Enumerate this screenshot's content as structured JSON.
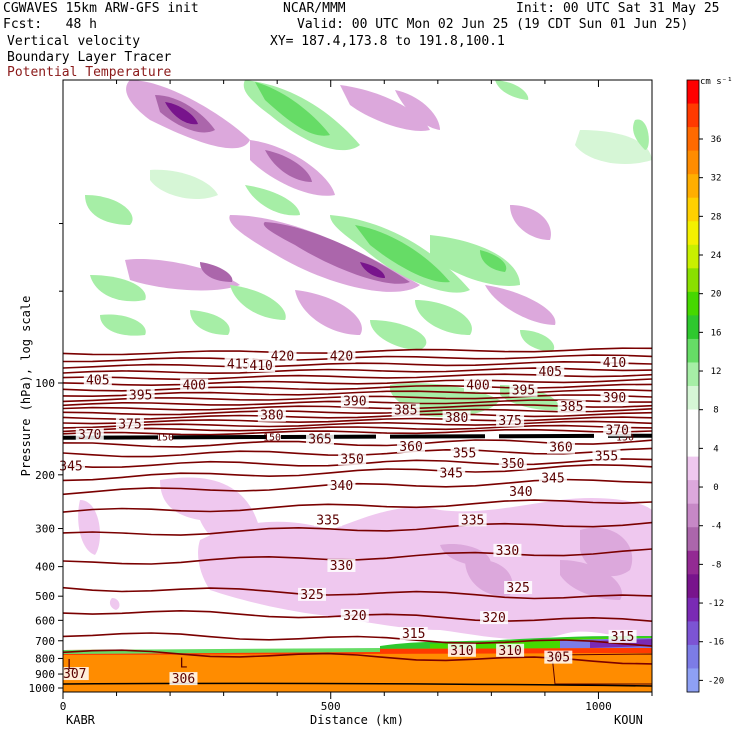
{
  "header": {
    "model": "CGWAVES 15km ARW-GFS init",
    "org": "NCAR/MMM",
    "init": "Init: 00 UTC Sat 31 May 25",
    "fcst": "Fcst:   48 h",
    "valid": "Valid: 00 UTC Mon 02 Jun 25 (19 CDT Sun 01 Jun 25)",
    "field1": "Vertical velocity",
    "xy": "XY= 187.4,173.8 to 191.8,100.1",
    "field2": "Boundary Layer Tracer",
    "field3": "Potential Temperature"
  },
  "colors": {
    "theta": "#7a0000",
    "tropopause": "#000000",
    "plot_border": "#000000"
  },
  "chart_data": {
    "type": "contour-cross-section",
    "xlabel": "Distance (km)",
    "ylabel": "Pressure (hPa), log scale",
    "xlim": [
      0,
      1100
    ],
    "x_ticks": [
      0,
      500,
      1000
    ],
    "y_ticks": [
      100,
      200,
      300,
      400,
      500,
      600,
      700,
      800,
      900,
      1000
    ],
    "y_scale": "log",
    "left_station": "KABR",
    "right_station": "KOUN",
    "colorbar": {
      "unit": "cm s⁻¹",
      "ticks": [
        "36",
        "32",
        "28",
        "24",
        "20",
        "16",
        "12",
        "8",
        "4",
        "0",
        "-4",
        "-8",
        "-12",
        "-16",
        "-20"
      ],
      "colors": [
        "#ff0000",
        "#ff3a00",
        "#ff6a00",
        "#ff8c00",
        "#ffae00",
        "#ffd000",
        "#f4f000",
        "#c8f000",
        "#8ae000",
        "#46d800",
        "#2ec82e",
        "#66dc66",
        "#a6eea6",
        "#d6f6d6",
        "#ffffff",
        "#ffffff",
        "#efc8ef",
        "#dca8dc",
        "#c688c6",
        "#ab66ab",
        "#932a93",
        "#78148c",
        "#7a2ab4",
        "#7c54d4",
        "#7c7ce6",
        "#8ea0f4"
      ]
    },
    "theta_labels": [
      {
        "v": "420",
        "x": 410,
        "p": 82
      },
      {
        "v": "420",
        "x": 520,
        "p": 82
      },
      {
        "v": "415",
        "x": 328,
        "p": 87
      },
      {
        "v": "410",
        "x": 370,
        "p": 88
      },
      {
        "v": "410",
        "x": 1030,
        "p": 86
      },
      {
        "v": "405",
        "x": 65,
        "p": 98
      },
      {
        "v": "405",
        "x": 910,
        "p": 92
      },
      {
        "v": "400",
        "x": 245,
        "p": 102
      },
      {
        "v": "400",
        "x": 775,
        "p": 102
      },
      {
        "v": "395",
        "x": 145,
        "p": 110
      },
      {
        "v": "395",
        "x": 860,
        "p": 106
      },
      {
        "v": "390",
        "x": 545,
        "p": 115
      },
      {
        "v": "390",
        "x": 1030,
        "p": 112
      },
      {
        "v": "385",
        "x": 640,
        "p": 123
      },
      {
        "v": "385",
        "x": 950,
        "p": 120
      },
      {
        "v": "380",
        "x": 390,
        "p": 128
      },
      {
        "v": "380",
        "x": 735,
        "p": 130
      },
      {
        "v": "375",
        "x": 125,
        "p": 137
      },
      {
        "v": "375",
        "x": 835,
        "p": 133
      },
      {
        "v": "370",
        "x": 50,
        "p": 148
      },
      {
        "v": "370",
        "x": 1035,
        "p": 143
      },
      {
        "v": "365",
        "x": 480,
        "p": 153
      },
      {
        "v": "360",
        "x": 650,
        "p": 162
      },
      {
        "v": "360",
        "x": 930,
        "p": 163
      },
      {
        "v": "355",
        "x": 750,
        "p": 170
      },
      {
        "v": "355",
        "x": 1015,
        "p": 174
      },
      {
        "v": "350",
        "x": 540,
        "p": 178
      },
      {
        "v": "350",
        "x": 840,
        "p": 184
      },
      {
        "v": "345",
        "x": 15,
        "p": 188
      },
      {
        "v": "345",
        "x": 725,
        "p": 198
      },
      {
        "v": "345",
        "x": 915,
        "p": 206
      },
      {
        "v": "340",
        "x": 520,
        "p": 218
      },
      {
        "v": "340",
        "x": 855,
        "p": 228
      },
      {
        "v": "335",
        "x": 495,
        "p": 282
      },
      {
        "v": "335",
        "x": 765,
        "p": 282
      },
      {
        "v": "330",
        "x": 520,
        "p": 398
      },
      {
        "v": "330",
        "x": 830,
        "p": 355
      },
      {
        "v": "325",
        "x": 465,
        "p": 495
      },
      {
        "v": "325",
        "x": 850,
        "p": 470
      },
      {
        "v": "320",
        "x": 545,
        "p": 580
      },
      {
        "v": "320",
        "x": 805,
        "p": 590
      },
      {
        "v": "315",
        "x": 655,
        "p": 665
      },
      {
        "v": "315",
        "x": 1045,
        "p": 680
      },
      {
        "v": "310",
        "x": 745,
        "p": 755
      },
      {
        "v": "310",
        "x": 835,
        "p": 755
      },
      {
        "v": "305",
        "x": 925,
        "p": 795
      },
      {
        "v": "307",
        "x": 22,
        "p": 900
      },
      {
        "v": "306",
        "x": 225,
        "p": 935
      }
    ],
    "tropopause_pressure": 150,
    "tropopause_label": "150",
    "surface_labels": [
      {
        "v": "L",
        "x": 225,
        "p": 830
      },
      {
        "v": "L",
        "x": 15,
        "p": 840
      }
    ]
  }
}
